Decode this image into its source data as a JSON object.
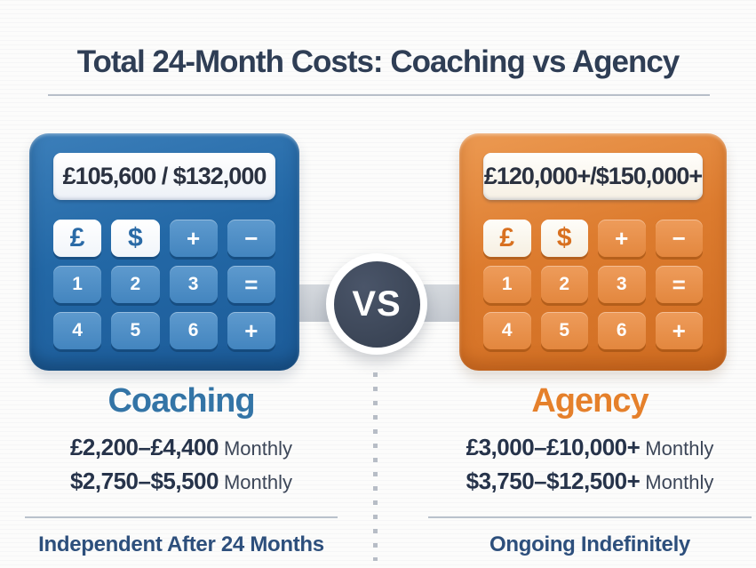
{
  "title": "Total 24-Month Costs: Coaching vs Agency",
  "vs_badge": "VS",
  "coaching": {
    "display_value": "£105,600 / $132,000",
    "keys": [
      "£",
      "$",
      "+",
      "−",
      "1",
      "2",
      "3",
      "=",
      "4",
      "5",
      "6",
      "+"
    ],
    "heading": "Coaching",
    "prices": [
      {
        "range": "£2,200–£4,400",
        "suffix": "Monthly"
      },
      {
        "range": "$2,750–$5,500",
        "suffix": "Monthly"
      }
    ],
    "footer": "Independent After 24 Months",
    "accent_color": "#3374a6",
    "body_color": "#2368a6"
  },
  "agency": {
    "display_value": "£120,000+/$150,000+",
    "keys": [
      "£",
      "$",
      "+",
      "−",
      "1",
      "2",
      "3",
      "=",
      "4",
      "5",
      "6",
      "+"
    ],
    "heading": "Agency",
    "prices": [
      {
        "range": "£3,000–£10,000+",
        "suffix": "Monthly"
      },
      {
        "range": "$3,750–$12,500+",
        "suffix": "Monthly"
      }
    ],
    "footer": "Ongoing Indefinitely",
    "accent_color": "#e5802b",
    "body_color": "#dd7c2f"
  },
  "colors": {
    "title_text": "#2f3e55",
    "vs_circle": "#3a4455",
    "connector_bar": "#c8cdd3",
    "price_text": "#26334a",
    "footer_text": "#2d4f7c"
  }
}
